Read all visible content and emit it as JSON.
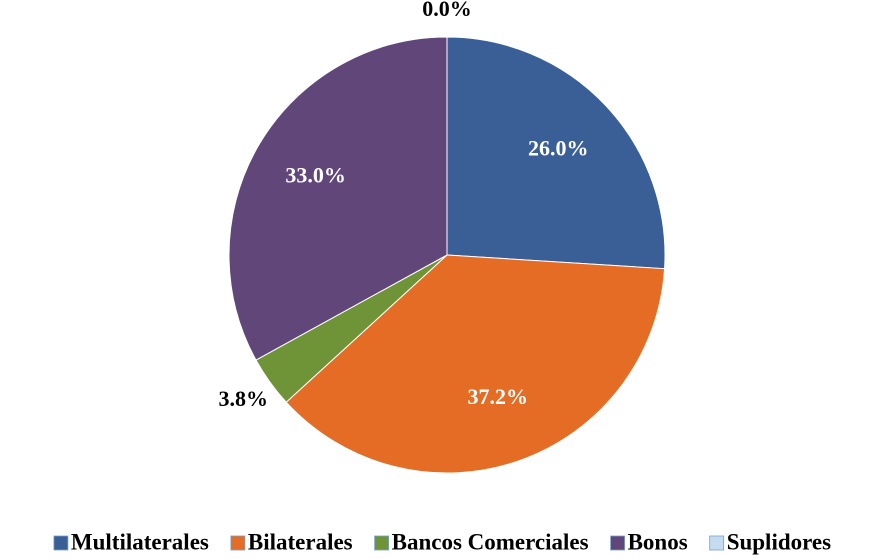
{
  "chart_data": {
    "type": "pie",
    "categories": [
      "Multilaterales",
      "Bilaterales",
      "Bancos Comerciales",
      "Bonos",
      "Suplidores"
    ],
    "values": [
      26.0,
      37.2,
      3.8,
      33.0,
      0.0
    ],
    "value_labels": [
      "26.0%",
      "37.2%",
      "3.8%",
      "33.0%",
      "0.0%"
    ],
    "colors": [
      "#3a5f96",
      "#e46c25",
      "#6f9438",
      "#604679",
      "#c5dcf0"
    ],
    "legend": "bottom"
  }
}
